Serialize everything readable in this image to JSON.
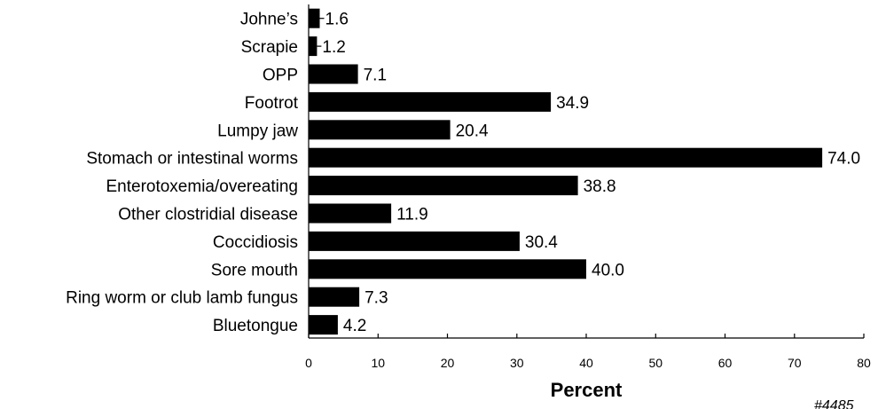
{
  "chart_data": {
    "type": "bar",
    "orientation": "horizontal",
    "categories": [
      "Johne’s",
      "Scrapie",
      "OPP",
      "Footrot",
      "Lumpy jaw",
      "Stomach or intestinal worms",
      "Enterotoxemia/overeating",
      "Other clostridial disease",
      "Coccidiosis",
      "Sore mouth",
      "Ring worm or club lamb fungus",
      "Bluetongue"
    ],
    "values": [
      1.6,
      1.2,
      7.1,
      34.9,
      20.4,
      74.0,
      38.8,
      11.9,
      30.4,
      40.0,
      7.3,
      4.2
    ],
    "value_labels": [
      "1.6",
      "1.2",
      "7.1",
      "34.9",
      "20.4",
      "74.0",
      "38.8",
      "11.9",
      "30.4",
      "40.0",
      "7.3",
      "4.2"
    ],
    "xlabel": "Percent",
    "ylabel": "",
    "xlim": [
      0,
      80
    ],
    "ticks": [
      "0",
      "10",
      "20",
      "30",
      "40",
      "50",
      "60",
      "70",
      "80"
    ],
    "grid": false,
    "bar_color": "#000000",
    "footnote": "#4485"
  }
}
